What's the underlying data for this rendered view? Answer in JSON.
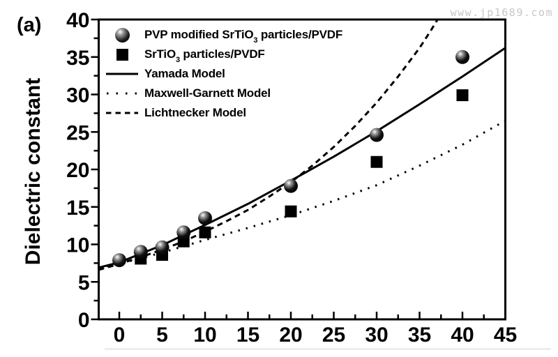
{
  "watermark": {
    "text": "www.jp1689.com",
    "color": "#c9c6c6"
  },
  "colors": {
    "foreground": "#000000",
    "background": "#ffffff"
  },
  "legend": {
    "items": [
      {
        "marker": "sphere",
        "pre": "PVP modified SrTiO",
        "sub": "3",
        "post": " particles/PVDF"
      },
      {
        "marker": "square",
        "pre": "SrTiO",
        "sub": "3",
        "post": " particles/PVDF"
      },
      {
        "marker": "solid-line",
        "label": "Yamada Model"
      },
      {
        "marker": "dotted-line",
        "label": "Maxwell-Garnett Model"
      },
      {
        "marker": "dashed-line",
        "label": "Lichtnecker Model"
      }
    ]
  },
  "chart_data": {
    "type": "scatter",
    "panel_label": "(a)",
    "title": "",
    "xlabel": "",
    "ylabel": "Dielectric constant",
    "xlim": [
      -2.4,
      45
    ],
    "ylim": [
      0,
      40
    ],
    "x_major_ticks": [
      0,
      5,
      10,
      15,
      20,
      25,
      30,
      35,
      40,
      45
    ],
    "y_major_ticks": [
      0,
      5,
      10,
      15,
      20,
      25,
      30,
      35,
      40
    ],
    "minor_tick_step": 2.5,
    "grid": "off",
    "legend_position": "top-left-inside",
    "series": [
      {
        "name": "PVP modified SrTiO3 particles/PVDF",
        "type": "scatter",
        "marker": "sphere",
        "points": [
          [
            0,
            7.9
          ],
          [
            2.5,
            9.0
          ],
          [
            5,
            9.6
          ],
          [
            7.5,
            11.6
          ],
          [
            10,
            13.5
          ],
          [
            20,
            17.8
          ],
          [
            30,
            24.6
          ],
          [
            40,
            35.0
          ]
        ]
      },
      {
        "name": "SrTiO3 particles/PVDF",
        "type": "scatter",
        "marker": "square",
        "points": [
          [
            2.5,
            8.1
          ],
          [
            5,
            8.6
          ],
          [
            7.5,
            10.4
          ],
          [
            10,
            11.6
          ],
          [
            20,
            14.4
          ],
          [
            30,
            21.0
          ],
          [
            40,
            29.9
          ]
        ]
      },
      {
        "name": "Yamada Model",
        "type": "line",
        "style": "solid",
        "points": [
          [
            -2.4,
            6.9
          ],
          [
            0,
            7.6
          ],
          [
            5,
            9.9
          ],
          [
            10,
            12.6
          ],
          [
            15,
            15.4
          ],
          [
            20,
            18.5
          ],
          [
            25,
            21.7
          ],
          [
            30,
            25.1
          ],
          [
            35,
            28.7
          ],
          [
            40,
            32.4
          ],
          [
            45,
            36.2
          ]
        ]
      },
      {
        "name": "Maxwell-Garnett Model",
        "type": "line",
        "style": "dotted",
        "points": [
          [
            -2.4,
            6.9
          ],
          [
            0,
            7.4
          ],
          [
            5,
            8.9
          ],
          [
            10,
            10.6
          ],
          [
            15,
            12.2
          ],
          [
            20,
            13.9
          ],
          [
            25,
            15.8
          ],
          [
            30,
            17.9
          ],
          [
            35,
            20.5
          ],
          [
            40,
            23.3
          ],
          [
            45,
            26.5
          ]
        ]
      },
      {
        "name": "Lichtnecker Model",
        "type": "line",
        "style": "dashed",
        "points": [
          [
            -2.4,
            6.6
          ],
          [
            0,
            7.4
          ],
          [
            2.5,
            8.3
          ],
          [
            5,
            9.3
          ],
          [
            7.5,
            10.4
          ],
          [
            10,
            11.7
          ],
          [
            12.5,
            13.1
          ],
          [
            15,
            14.6
          ],
          [
            17.5,
            16.4
          ],
          [
            20,
            18.3
          ],
          [
            22.5,
            20.5
          ],
          [
            25,
            23.0
          ],
          [
            27.5,
            25.8
          ],
          [
            30,
            28.9
          ],
          [
            32.5,
            32.4
          ],
          [
            35,
            36.2
          ],
          [
            36.3,
            38.5
          ],
          [
            37.1,
            40.0
          ]
        ]
      }
    ]
  }
}
